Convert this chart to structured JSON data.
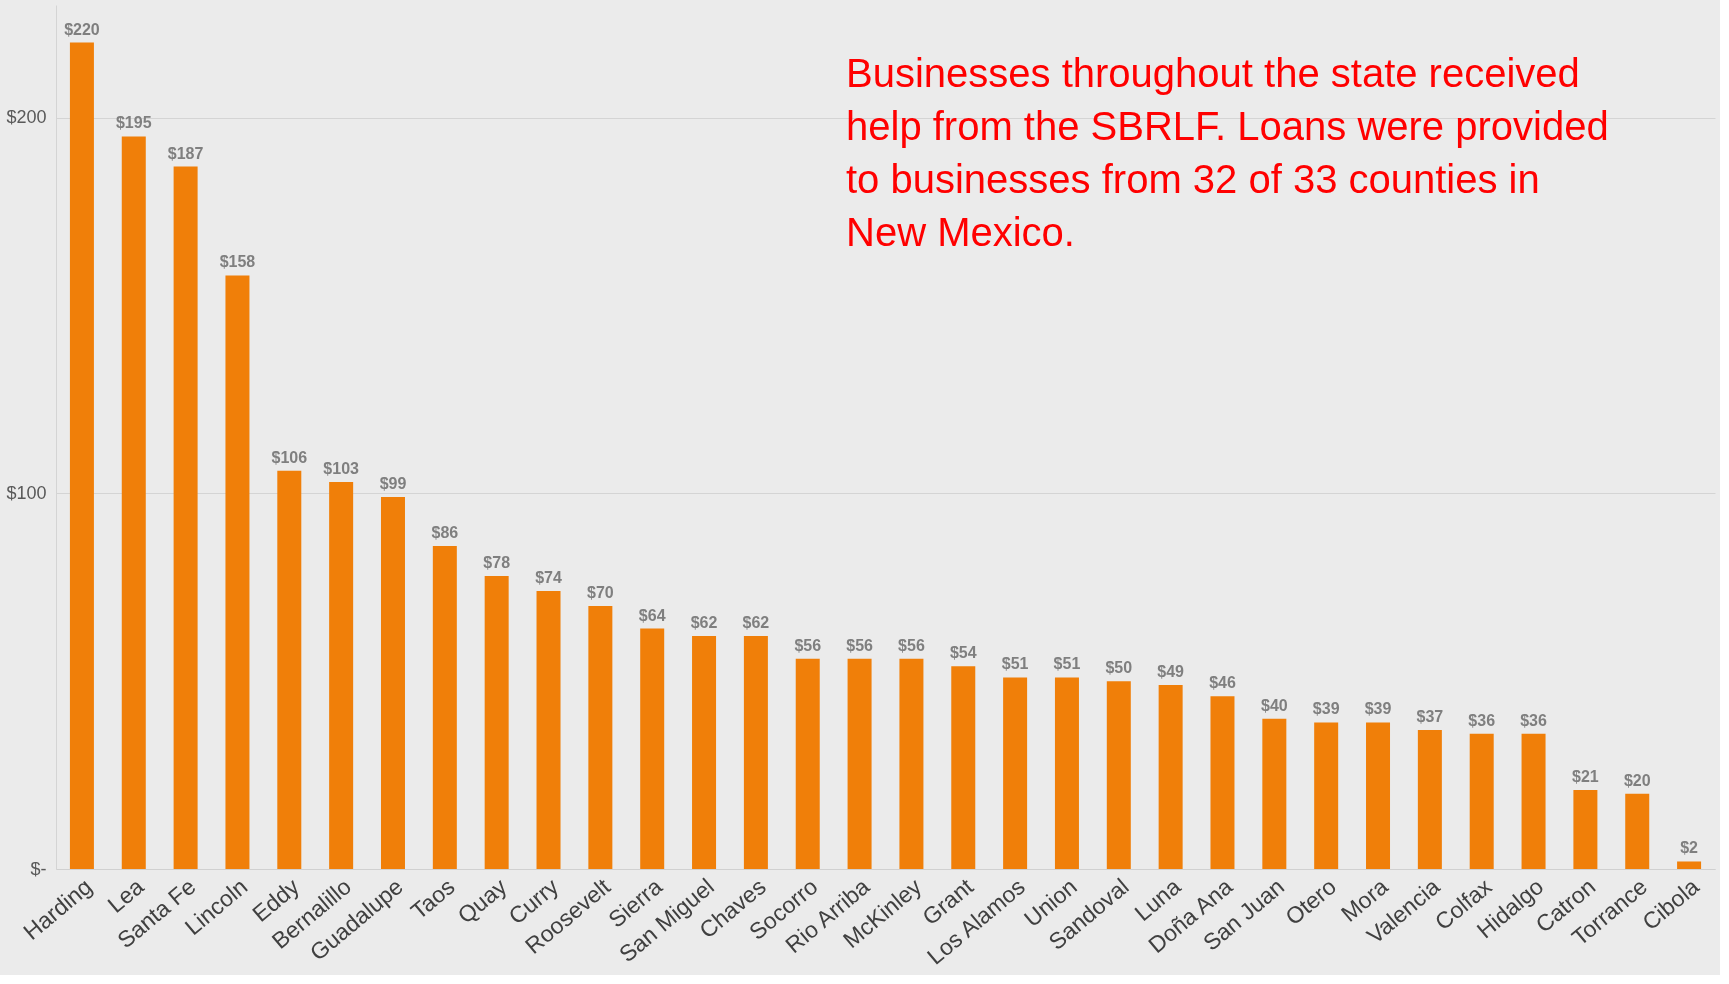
{
  "chart_data": {
    "type": "bar",
    "categories": [
      "Harding",
      "Lea",
      "Santa Fe",
      "Lincoln",
      "Eddy",
      "Bernalillo",
      "Guadalupe",
      "Taos",
      "Quay",
      "Curry",
      "Roosevelt",
      "Sierra",
      "San Miguel",
      "Chaves",
      "Socorro",
      "Rio Arriba",
      "McKinley",
      "Grant",
      "Los Alamos",
      "Union",
      "Sandoval",
      "Luna",
      "Doña Ana",
      "San Juan",
      "Otero",
      "Mora",
      "Valencia",
      "Colfax",
      "Hidalgo",
      "Catron",
      "Torrance",
      "Cibola"
    ],
    "values": [
      220,
      195,
      187,
      158,
      106,
      103,
      99,
      86,
      78,
      74,
      70,
      64,
      62,
      62,
      56,
      56,
      56,
      54,
      51,
      51,
      50,
      49,
      46,
      40,
      39,
      39,
      37,
      36,
      36,
      21,
      20,
      2
    ],
    "value_labels": [
      "$220",
      "$195",
      "$187",
      "$158",
      "$106",
      "$103",
      "$99",
      "$86",
      "$78",
      "$74",
      "$70",
      "$64",
      "$62",
      "$62",
      "$56",
      "$56",
      "$56",
      "$54",
      "$51",
      "$51",
      "$50",
      "$49",
      "$46",
      "$40",
      "$39",
      "$39",
      "$37",
      "$36",
      "$36",
      "$21",
      "$20",
      "$2"
    ],
    "color": "#f07f09",
    "ylim": [
      0,
      230
    ],
    "yticks": [
      {
        "value": 0,
        "label": "$-"
      },
      {
        "value": 100,
        "label": "$100"
      },
      {
        "value": 200,
        "label": "$200"
      }
    ],
    "grid": "y",
    "annotations": [
      "Businesses throughout the state received help from the SBRLF. Loans were provided to businesses from 32 of 33 counties in New Mexico."
    ]
  }
}
